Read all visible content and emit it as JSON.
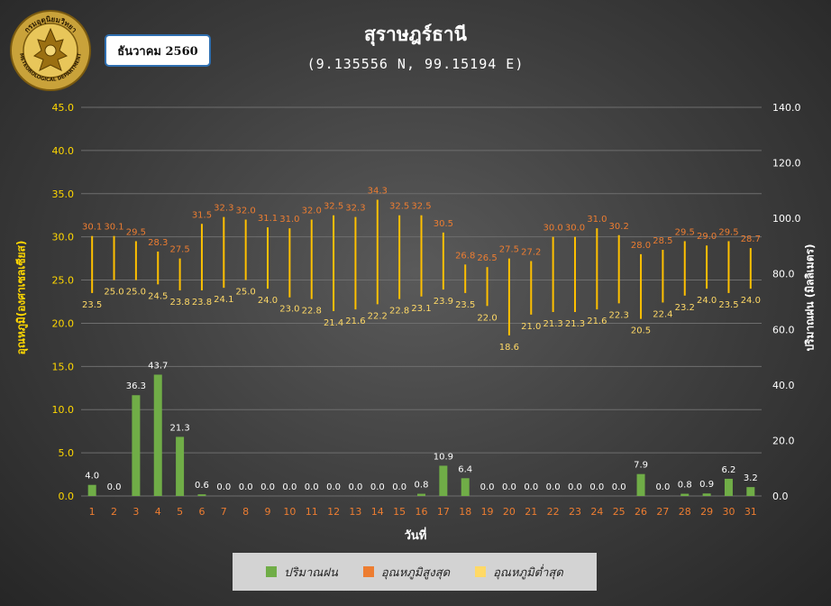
{
  "month_label": "ธันวาคม 2560",
  "logo": {
    "icon": "meteorological-department-seal-icon",
    "text_top": "กรมอุตุนิยมวิทยา",
    "text_bottom": "METEOROLOGICAL DEPARTMENT"
  },
  "colors": {
    "rain": "#70ad47",
    "tmax": "#ed7d31",
    "tmin": "#ffd966",
    "range_line": "#ffc000",
    "left_axis": "#ffd700",
    "right_axis": "#ffffff",
    "x_ticks": "#ed7d31"
  },
  "chart_data": {
    "type": "bar",
    "title": "สุราษฎร์ธานี",
    "subtitle": "(9.135556 N, 99.15194 E)",
    "xlabel": "วันที่",
    "ylabel_left": "อุณหภูมิ(องศาเซลเซียส)",
    "ylabel_right": "ปริมาณฝน (มิลลิเมตร)",
    "ylim_left": [
      0,
      45
    ],
    "ylim_right": [
      0,
      140
    ],
    "yticks_left": [
      "0.0",
      "5.0",
      "10.0",
      "15.0",
      "20.0",
      "25.0",
      "30.0",
      "35.0",
      "40.0",
      "45.0"
    ],
    "yticks_right": [
      "0.0",
      "20.0",
      "40.0",
      "60.0",
      "80.0",
      "100.0",
      "120.0",
      "140.0"
    ],
    "grid": true,
    "legend_position": "bottom",
    "categories": [
      "1",
      "2",
      "3",
      "4",
      "5",
      "6",
      "7",
      "8",
      "9",
      "10",
      "11",
      "12",
      "13",
      "14",
      "15",
      "16",
      "17",
      "18",
      "19",
      "20",
      "21",
      "22",
      "23",
      "24",
      "25",
      "26",
      "27",
      "28",
      "29",
      "30",
      "31"
    ],
    "series": [
      {
        "name": "ปริมาณฝน",
        "axis": "right",
        "values": [
          4.0,
          0.0,
          36.3,
          43.7,
          21.3,
          0.6,
          0.0,
          0.0,
          0.0,
          0.0,
          0.0,
          0.0,
          0.0,
          0.0,
          0.0,
          0.8,
          10.9,
          6.4,
          0.0,
          0.0,
          0.0,
          0.0,
          0.0,
          0.0,
          0.0,
          7.9,
          0.0,
          0.8,
          0.9,
          6.2,
          3.2
        ],
        "labels": [
          "4.0",
          "0.0",
          "36.3",
          "43.7",
          "21.3",
          "0.6",
          "0.0",
          "0.0",
          "0.0",
          "0.0",
          "0.0",
          "0.0",
          "0.0",
          "0.0",
          "0.0",
          "0.8",
          "10.9",
          "6.4",
          "0.0",
          "0.0",
          "0.0",
          "0.0",
          "0.0",
          "0.0",
          "0.0",
          "7.9",
          "0.0",
          "0.8",
          "0.9",
          "6.2",
          "3.2"
        ]
      },
      {
        "name": "อุณหภูมิสูงสุด",
        "axis": "left",
        "values": [
          30.1,
          30.1,
          29.5,
          28.3,
          27.5,
          31.5,
          32.3,
          32.0,
          31.1,
          31.0,
          32.0,
          32.5,
          32.3,
          34.3,
          32.5,
          32.5,
          30.5,
          26.8,
          26.5,
          27.5,
          27.2,
          30.0,
          30.0,
          31.0,
          30.2,
          28.0,
          28.5,
          29.5,
          29.0,
          29.5,
          28.7
        ],
        "labels": [
          "30.1",
          "30.1",
          "29.5",
          "28.3",
          "27.5",
          "31.5",
          "32.3",
          "32.0",
          "31.1",
          "31.0",
          "32.0",
          "32.5",
          "32.3",
          "34.3",
          "32.5",
          "32.5",
          "30.5",
          "26.8",
          "26.5",
          "27.5",
          "27.2",
          "30.0",
          "30.0",
          "31.0",
          "30.2",
          "28.0",
          "28.5",
          "29.5",
          "29.0",
          "29.5",
          "28.7"
        ]
      },
      {
        "name": "อุณหภูมิต่ำสุด",
        "axis": "left",
        "values": [
          23.5,
          25.0,
          25.0,
          24.5,
          23.8,
          23.8,
          24.1,
          25.0,
          24.0,
          23.0,
          22.8,
          21.4,
          21.6,
          22.2,
          22.8,
          23.1,
          23.9,
          23.5,
          22.0,
          18.6,
          21.0,
          21.3,
          21.3,
          21.6,
          22.3,
          20.5,
          22.4,
          23.2,
          24.0,
          23.5,
          24.0
        ],
        "labels": [
          "23.5",
          "25.0",
          "25.0",
          "24.5",
          "23.8",
          "23.8",
          "24.1",
          "25.0",
          "24.0",
          "23.0",
          "22.8",
          "21.4",
          "21.6",
          "22.2",
          "22.8",
          "23.1",
          "23.9",
          "23.5",
          "22.0",
          "18.6",
          "21.0",
          "21.3",
          "21.3",
          "21.6",
          "22.3",
          "20.5",
          "22.4",
          "23.2",
          "24.0",
          "23.5",
          "24.0"
        ]
      }
    ]
  }
}
